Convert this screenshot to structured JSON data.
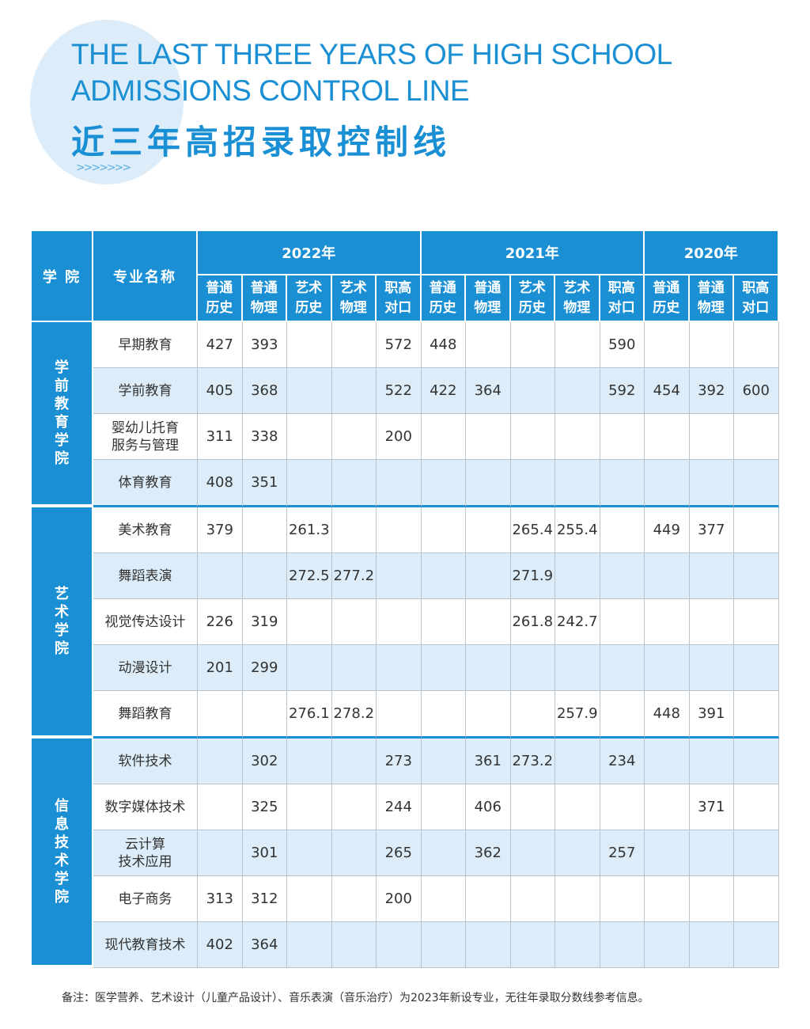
{
  "header": {
    "title_en_line1": "THE LAST THREE YEARS OF HIGH SCHOOL",
    "title_en_line2": "ADMISSIONS CONTROL LINE",
    "title_cn": "近三年高招录取控制线",
    "decoration": ">>>>>>>"
  },
  "colors": {
    "accent": "#1a8fd3",
    "stripe": "#dcedf9"
  },
  "table": {
    "col_college": "学 院",
    "col_major": "专业名称",
    "years": [
      {
        "label": "2022年",
        "subcols": [
          [
            "普通",
            "历史"
          ],
          [
            "普通",
            "物理"
          ],
          [
            "艺术",
            "历史"
          ],
          [
            "艺术",
            "物理"
          ],
          [
            "职高",
            "对口"
          ]
        ]
      },
      {
        "label": "2021年",
        "subcols": [
          [
            "普通",
            "历史"
          ],
          [
            "普通",
            "物理"
          ],
          [
            "艺术",
            "历史"
          ],
          [
            "艺术",
            "物理"
          ],
          [
            "职高",
            "对口"
          ]
        ]
      },
      {
        "label": "2020年",
        "subcols": [
          [
            "普通",
            "历史"
          ],
          [
            "普通",
            "物理"
          ],
          [
            "职高",
            "对口"
          ]
        ]
      }
    ],
    "groups": [
      {
        "college": "学前教育学院",
        "rows": [
          {
            "major": "早期教育",
            "values": [
              "427",
              "393",
              "",
              "",
              "572",
              "448",
              "",
              "",
              "",
              "590",
              "",
              "",
              ""
            ]
          },
          {
            "major": "学前教育",
            "values": [
              "405",
              "368",
              "",
              "",
              "522",
              "422",
              "364",
              "",
              "",
              "592",
              "454",
              "392",
              "600"
            ]
          },
          {
            "major": "婴幼儿托育\n服务与管理",
            "values": [
              "311",
              "338",
              "",
              "",
              "200",
              "",
              "",
              "",
              "",
              "",
              "",
              "",
              ""
            ]
          },
          {
            "major": "体育教育",
            "values": [
              "408",
              "351",
              "",
              "",
              "",
              "",
              "",
              "",
              "",
              "",
              "",
              "",
              ""
            ]
          }
        ]
      },
      {
        "college": "艺术学院",
        "rows": [
          {
            "major": "美术教育",
            "values": [
              "379",
              "",
              "261.3",
              "",
              "",
              "",
              "",
              "265.4",
              "255.4",
              "",
              "449",
              "377",
              ""
            ]
          },
          {
            "major": "舞蹈表演",
            "values": [
              "",
              "",
              "272.5",
              "277.2",
              "",
              "",
              "",
              "271.9",
              "",
              "",
              "",
              "",
              ""
            ]
          },
          {
            "major": "视觉传达设计",
            "values": [
              "226",
              "319",
              "",
              "",
              "",
              "",
              "",
              "261.8",
              "242.7",
              "",
              "",
              "",
              ""
            ]
          },
          {
            "major": "动漫设计",
            "values": [
              "201",
              "299",
              "",
              "",
              "",
              "",
              "",
              "",
              "",
              "",
              "",
              "",
              ""
            ]
          },
          {
            "major": "舞蹈教育",
            "values": [
              "",
              "",
              "276.1",
              "278.2",
              "",
              "",
              "",
              "",
              "257.9",
              "",
              "448",
              "391",
              ""
            ]
          }
        ]
      },
      {
        "college": "信息技术学院",
        "rows": [
          {
            "major": "软件技术",
            "values": [
              "",
              "302",
              "",
              "",
              "273",
              "",
              "361",
              "273.2",
              "",
              "234",
              "",
              "",
              ""
            ]
          },
          {
            "major": "数字媒体技术",
            "values": [
              "",
              "325",
              "",
              "",
              "244",
              "",
              "406",
              "",
              "",
              "",
              "",
              "371",
              ""
            ]
          },
          {
            "major": "云计算\n技术应用",
            "values": [
              "",
              "301",
              "",
              "",
              "265",
              "",
              "362",
              "",
              "",
              "257",
              "",
              "",
              ""
            ]
          },
          {
            "major": "电子商务",
            "values": [
              "313",
              "312",
              "",
              "",
              "200",
              "",
              "",
              "",
              "",
              "",
              "",
              "",
              ""
            ]
          },
          {
            "major": "现代教育技术",
            "values": [
              "402",
              "364",
              "",
              "",
              "",
              "",
              "",
              "",
              "",
              "",
              "",
              "",
              ""
            ]
          }
        ]
      }
    ]
  },
  "footnote": "备注：医学营养、艺术设计（儿童产品设计）、音乐表演（音乐治疗）为2023年新设专业，无往年录取分数线参考信息。"
}
